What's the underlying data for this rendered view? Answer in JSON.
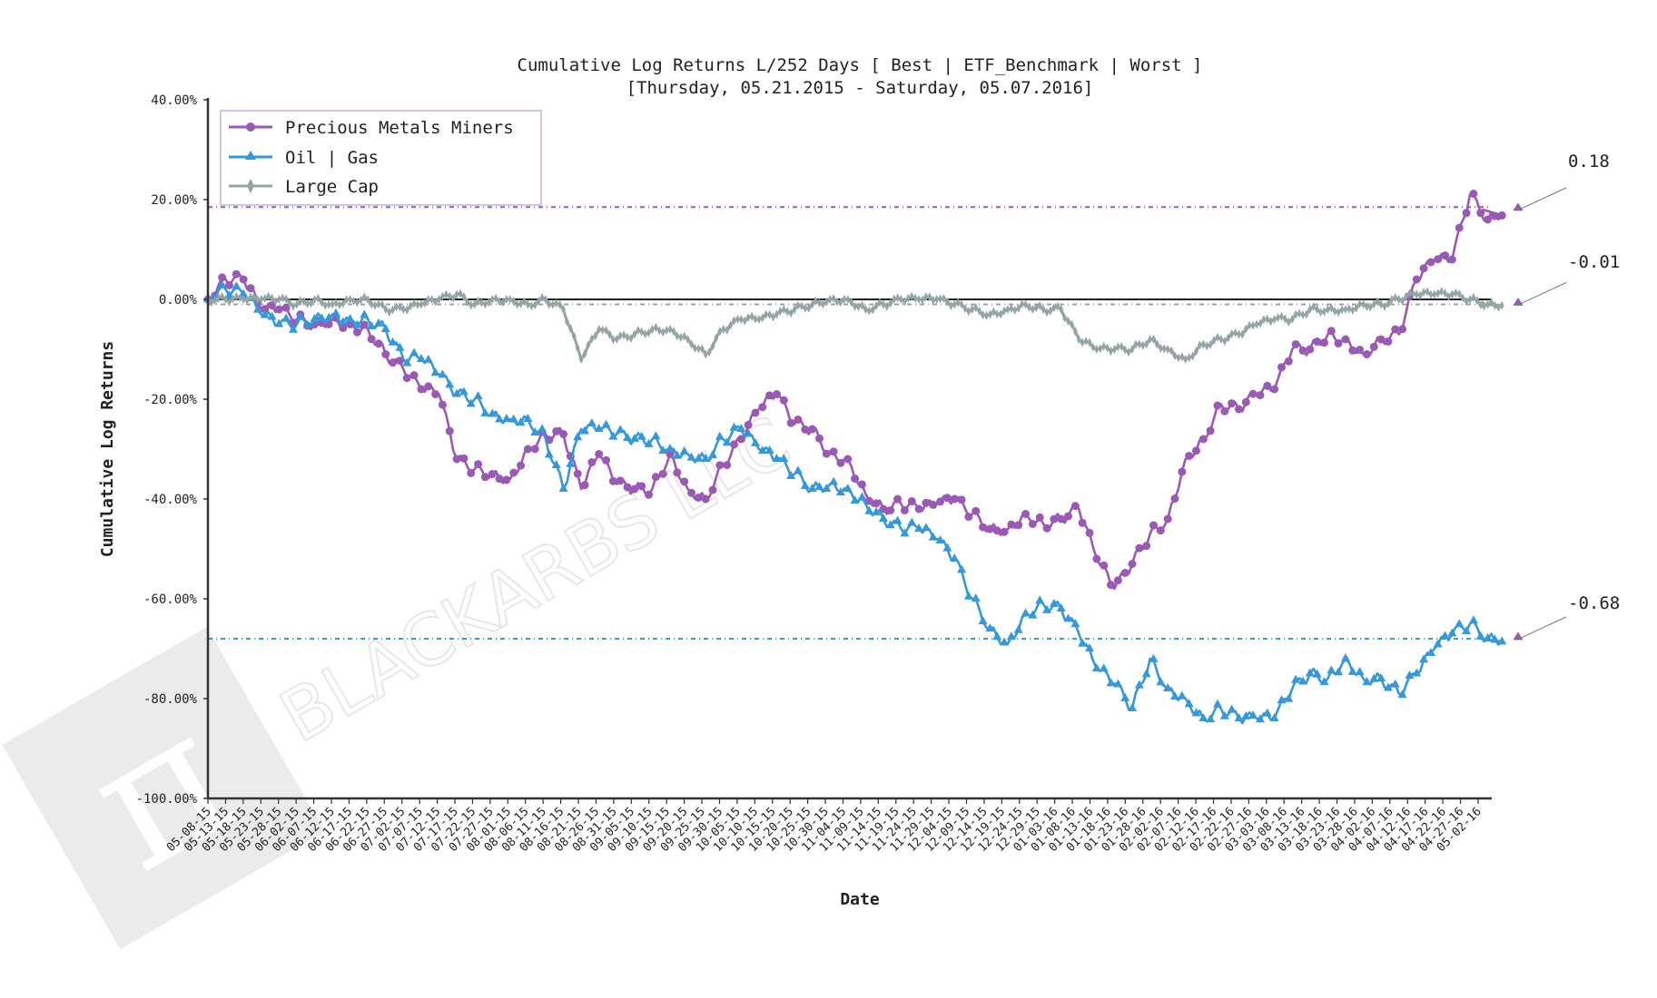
{
  "chart_data": {
    "type": "line",
    "title": "Cumulative Log Returns L/252 Days [ Best | ETF_Benchmark | Worst ]",
    "subtitle": "[Thursday, 05.21.2015 - Saturday, 05.07.2016]",
    "xlabel": "Date",
    "ylabel": "Cumulative Log Returns",
    "ylim": [
      -1.0,
      0.4
    ],
    "yticks": [
      "40.00%",
      "20.00%",
      "0.00%",
      "-20.00%",
      "-40.00%",
      "-60.00%",
      "-80.00%",
      "-100.00%"
    ],
    "grid": false,
    "legend_position": "upper left",
    "x": [
      "05-08-15",
      "05-13-15",
      "05-18-15",
      "05-23-15",
      "05-28-15",
      "06-02-15",
      "06-07-15",
      "06-12-15",
      "06-17-15",
      "06-22-15",
      "06-27-15",
      "07-02-15",
      "07-07-15",
      "07-12-15",
      "07-17-15",
      "07-22-15",
      "07-27-15",
      "08-01-15",
      "08-06-15",
      "08-11-15",
      "08-16-15",
      "08-21-15",
      "08-26-15",
      "08-31-15",
      "09-05-15",
      "09-10-15",
      "09-15-15",
      "09-20-15",
      "09-25-15",
      "09-30-15",
      "10-05-15",
      "10-10-15",
      "10-15-15",
      "10-20-15",
      "10-25-15",
      "10-30-15",
      "11-04-15",
      "11-09-15",
      "11-14-15",
      "11-19-15",
      "11-24-15",
      "11-29-15",
      "12-04-15",
      "12-09-15",
      "12-14-15",
      "12-19-15",
      "12-24-15",
      "12-29-15",
      "01-03-16",
      "01-08-16",
      "01-13-16",
      "01-18-16",
      "01-23-16",
      "01-28-16",
      "02-02-16",
      "02-07-16",
      "02-12-16",
      "02-17-16",
      "02-22-16",
      "02-27-16",
      "03-03-16",
      "03-08-16",
      "03-13-16",
      "03-18-16",
      "03-23-16",
      "03-28-16",
      "04-02-16",
      "04-07-16",
      "04-12-16",
      "04-17-16",
      "04-22-16",
      "04-27-16",
      "05-02-16",
      "05-07-16"
    ],
    "series": [
      {
        "name": "Precious Metals Miners",
        "color": "#9b59b6",
        "marker": "circle",
        "values": [
          0.0,
          0.04,
          0.04,
          -0.02,
          -0.02,
          -0.04,
          -0.05,
          -0.04,
          -0.05,
          -0.06,
          -0.11,
          -0.14,
          -0.18,
          -0.19,
          -0.32,
          -0.34,
          -0.35,
          -0.36,
          -0.3,
          -0.27,
          -0.27,
          -0.38,
          -0.31,
          -0.37,
          -0.38,
          -0.38,
          -0.31,
          -0.38,
          -0.4,
          -0.33,
          -0.28,
          -0.22,
          -0.19,
          -0.25,
          -0.26,
          -0.31,
          -0.32,
          -0.39,
          -0.42,
          -0.41,
          -0.42,
          -0.41,
          -0.4,
          -0.43,
          -0.46,
          -0.46,
          -0.43,
          -0.45,
          -0.44,
          -0.42,
          -0.52,
          -0.58,
          -0.53,
          -0.47,
          -0.44,
          -0.32,
          -0.28,
          -0.21,
          -0.22,
          -0.19,
          -0.18,
          -0.1,
          -0.1,
          -0.07,
          -0.08,
          -0.11,
          -0.08,
          -0.07,
          0.04,
          0.08,
          0.08,
          0.21,
          0.16,
          0.18
        ]
      },
      {
        "name": "Oil | Gas",
        "color": "#3498db",
        "marker": "triangle",
        "values": [
          0.0,
          0.02,
          0.01,
          -0.03,
          -0.05,
          -0.05,
          -0.04,
          -0.03,
          -0.04,
          -0.04,
          -0.06,
          -0.12,
          -0.12,
          -0.15,
          -0.19,
          -0.2,
          -0.23,
          -0.24,
          -0.24,
          -0.28,
          -0.38,
          -0.26,
          -0.26,
          -0.27,
          -0.28,
          -0.28,
          -0.3,
          -0.31,
          -0.32,
          -0.28,
          -0.26,
          -0.3,
          -0.32,
          -0.35,
          -0.38,
          -0.37,
          -0.38,
          -0.41,
          -0.44,
          -0.46,
          -0.46,
          -0.48,
          -0.52,
          -0.6,
          -0.66,
          -0.69,
          -0.63,
          -0.61,
          -0.62,
          -0.67,
          -0.74,
          -0.77,
          -0.82,
          -0.72,
          -0.78,
          -0.8,
          -0.84,
          -0.82,
          -0.84,
          -0.84,
          -0.84,
          -0.78,
          -0.75,
          -0.76,
          -0.72,
          -0.76,
          -0.76,
          -0.79,
          -0.75,
          -0.7,
          -0.67,
          -0.65,
          -0.68,
          -0.68
        ]
      },
      {
        "name": "Large Cap",
        "color": "#95a5a6",
        "marker": "diamond",
        "values": [
          0.0,
          0.0,
          0.0,
          0.0,
          0.0,
          -0.01,
          0.0,
          -0.01,
          0.0,
          0.0,
          -0.02,
          -0.02,
          -0.01,
          0.0,
          0.01,
          -0.01,
          0.0,
          0.0,
          -0.01,
          0.0,
          -0.02,
          -0.12,
          -0.06,
          -0.08,
          -0.07,
          -0.06,
          -0.06,
          -0.08,
          -0.11,
          -0.06,
          -0.04,
          -0.04,
          -0.03,
          -0.02,
          -0.01,
          0.0,
          0.0,
          -0.02,
          -0.01,
          0.0,
          0.0,
          0.0,
          -0.01,
          -0.02,
          -0.03,
          -0.02,
          -0.01,
          -0.02,
          -0.02,
          -0.08,
          -0.1,
          -0.1,
          -0.1,
          -0.08,
          -0.1,
          -0.12,
          -0.09,
          -0.08,
          -0.07,
          -0.05,
          -0.04,
          -0.04,
          -0.02,
          -0.02,
          -0.02,
          -0.01,
          -0.01,
          0.0,
          0.01,
          0.01,
          0.01,
          0.0,
          -0.01,
          -0.01
        ]
      }
    ],
    "reference_lines": [
      {
        "label": "Best",
        "value": 0.185,
        "color": "#9b59b6",
        "style": "dashdot"
      },
      {
        "label": "ETF_Benchmark",
        "value": -0.01,
        "color": "#95a5a6",
        "style": "dashdot"
      },
      {
        "label": "Worst",
        "value": -0.68,
        "color": "#3498db",
        "style": "dashdot"
      },
      {
        "label": "Zero",
        "value": 0.0,
        "color": "#000000",
        "style": "solid"
      }
    ],
    "annotations": [
      {
        "text": "0.18",
        "y": 0.18
      },
      {
        "text": "-0.01",
        "y": -0.01
      },
      {
        "text": "-0.68",
        "y": -0.68
      }
    ],
    "watermark": "BLACKARBS LLC"
  }
}
